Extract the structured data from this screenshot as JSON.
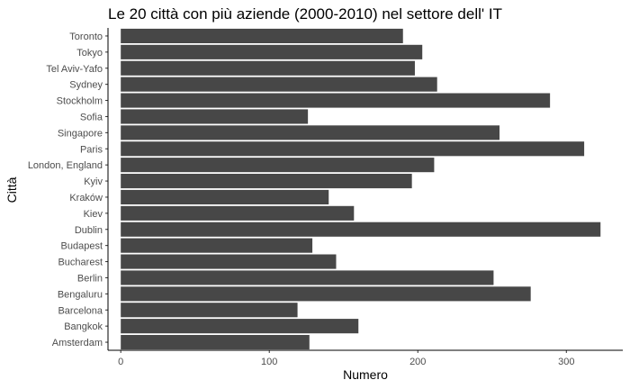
{
  "chart_data": {
    "type": "bar",
    "orientation": "horizontal",
    "title": "Le 20 città con più aziende (2000-2010) nel settore dell' IT",
    "xlabel": "Numero",
    "ylabel": "Città",
    "categories": [
      "Amsterdam",
      "Bangkok",
      "Barcelona",
      "Bengaluru",
      "Berlin",
      "Bucharest",
      "Budapest",
      "Dublin",
      "Kiev",
      "Kraków",
      "Kyiv",
      "London, England",
      "Paris",
      "Singapore",
      "Sofia",
      "Stockholm",
      "Sydney",
      "Tel Aviv-Yafo",
      "Tokyo",
      "Toronto"
    ],
    "values": [
      127,
      160,
      119,
      276,
      251,
      145,
      129,
      323,
      157,
      140,
      196,
      211,
      312,
      255,
      126,
      289,
      213,
      198,
      203,
      190
    ],
    "xlim": [
      -8.6,
      338
    ],
    "xticks": [
      0,
      100,
      200,
      300
    ],
    "bar_color": "#474747",
    "grid": false
  }
}
